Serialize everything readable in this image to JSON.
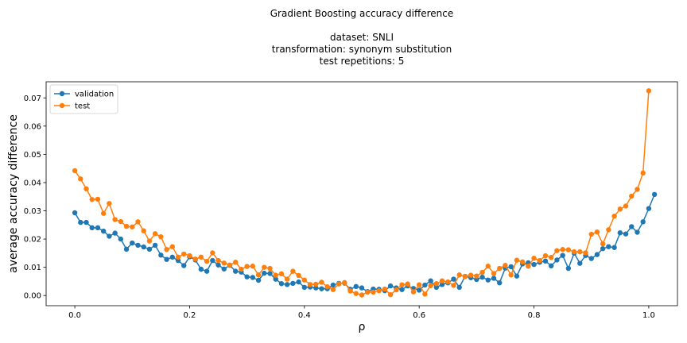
{
  "chart_data": {
    "type": "line",
    "title": [
      "Gradient Boosting accuracy difference",
      "",
      "dataset: SNLI",
      "transformation: synonym substitution",
      "test repetitions: 5"
    ],
    "xlabel": "ρ",
    "ylabel": "average accuracy difference",
    "xlim": [
      -0.05,
      1.05
    ],
    "ylim": [
      -0.0036,
      0.0757
    ],
    "xticks": [
      0.0,
      0.2,
      0.4,
      0.6,
      0.8,
      1.0
    ],
    "xtick_labels": [
      "0.0",
      "0.2",
      "0.4",
      "0.6",
      "0.8",
      "1.0"
    ],
    "yticks": [
      0.0,
      0.01,
      0.02,
      0.03,
      0.04,
      0.05,
      0.06,
      0.07
    ],
    "ytick_labels": [
      "0.00",
      "0.01",
      "0.02",
      "0.03",
      "0.04",
      "0.05",
      "0.06",
      "0.07"
    ],
    "grid": false,
    "legend": "top-left",
    "x_start": 0.0,
    "x_step": 0.01,
    "series": [
      {
        "name": "validation",
        "color": "#1f77b4",
        "values": [
          0.0293,
          0.0259,
          0.0259,
          0.024,
          0.024,
          0.0228,
          0.021,
          0.0221,
          0.02,
          0.0164,
          0.0186,
          0.0178,
          0.0172,
          0.0164,
          0.0178,
          0.0143,
          0.0128,
          0.0136,
          0.0124,
          0.0106,
          0.0137,
          0.0126,
          0.0093,
          0.0086,
          0.0124,
          0.0108,
          0.0094,
          0.0107,
          0.0086,
          0.0083,
          0.0066,
          0.0064,
          0.0054,
          0.0079,
          0.0078,
          0.0058,
          0.0042,
          0.0039,
          0.0043,
          0.0048,
          0.0029,
          0.003,
          0.0027,
          0.0024,
          0.0024,
          0.0037,
          0.0043,
          0.0044,
          0.0022,
          0.0032,
          0.0027,
          0.0014,
          0.0023,
          0.0022,
          0.0017,
          0.0034,
          0.0027,
          0.0021,
          0.0034,
          0.0025,
          0.0019,
          0.0037,
          0.0052,
          0.0029,
          0.0039,
          0.0045,
          0.0058,
          0.0029,
          0.0068,
          0.0063,
          0.0057,
          0.0065,
          0.0055,
          0.0061,
          0.0045,
          0.0097,
          0.0102,
          0.0069,
          0.0112,
          0.0116,
          0.011,
          0.0118,
          0.0122,
          0.0105,
          0.0126,
          0.0142,
          0.0096,
          0.015,
          0.0114,
          0.0142,
          0.0131,
          0.0145,
          0.0166,
          0.0173,
          0.017,
          0.0222,
          0.0218,
          0.0244,
          0.0224,
          0.0261,
          0.0308,
          0.0358
        ]
      },
      {
        "name": "test",
        "color": "#ff7f0e",
        "values": [
          0.0442,
          0.0413,
          0.0378,
          0.034,
          0.0341,
          0.0291,
          0.0326,
          0.0269,
          0.0262,
          0.0245,
          0.0243,
          0.0261,
          0.0229,
          0.0193,
          0.0219,
          0.0208,
          0.0163,
          0.0173,
          0.0136,
          0.0147,
          0.0141,
          0.0129,
          0.0136,
          0.0121,
          0.0151,
          0.0124,
          0.0115,
          0.0108,
          0.0118,
          0.0093,
          0.0103,
          0.0104,
          0.0073,
          0.01,
          0.0096,
          0.0072,
          0.0077,
          0.0058,
          0.0086,
          0.0071,
          0.0055,
          0.0039,
          0.004,
          0.0047,
          0.0031,
          0.0021,
          0.0041,
          0.0046,
          0.0016,
          0.0007,
          0.0002,
          0.0012,
          0.0012,
          0.0017,
          0.0023,
          0.0003,
          0.002,
          0.0038,
          0.0041,
          0.0013,
          0.0038,
          0.0005,
          0.0035,
          0.0042,
          0.0052,
          0.0048,
          0.0036,
          0.0073,
          0.0067,
          0.0072,
          0.0069,
          0.0082,
          0.0104,
          0.0078,
          0.0096,
          0.0107,
          0.0073,
          0.0125,
          0.0119,
          0.0104,
          0.0132,
          0.0124,
          0.0141,
          0.0135,
          0.0159,
          0.0163,
          0.0162,
          0.0155,
          0.0155,
          0.0151,
          0.0217,
          0.0225,
          0.0183,
          0.0233,
          0.0281,
          0.0306,
          0.0317,
          0.0352,
          0.0376,
          0.0434,
          0.0725
        ]
      }
    ]
  }
}
